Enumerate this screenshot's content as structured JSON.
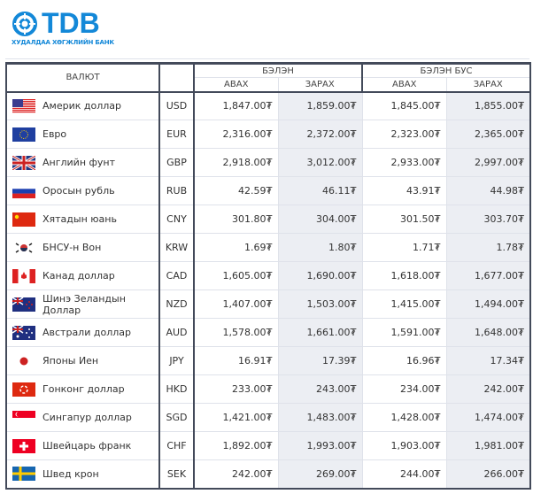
{
  "logo": {
    "name": "TDB",
    "subtitle": "ХУДАЛДАА ХӨГЖЛИЙН БАНК",
    "color": "#1388d8"
  },
  "header": {
    "currency": "ВАЛЮТ",
    "cash": "БЭЛЭН",
    "noncash": "БЭЛЭН БУС",
    "buy": "АВАХ",
    "sell": "ЗАРАХ"
  },
  "rows": [
    {
      "flag": "us-flag",
      "name": "Америк доллар",
      "code": "USD",
      "cash_buy": "1,847.00₮",
      "cash_sell": "1,859.00₮",
      "noncash_buy": "1,845.00₮",
      "noncash_sell": "1,855.00₮"
    },
    {
      "flag": "eu-flag",
      "name": "Евро",
      "code": "EUR",
      "cash_buy": "2,316.00₮",
      "cash_sell": "2,372.00₮",
      "noncash_buy": "2,323.00₮",
      "noncash_sell": "2,365.00₮"
    },
    {
      "flag": "gb-flag",
      "name": "Английн фунт",
      "code": "GBP",
      "cash_buy": "2,918.00₮",
      "cash_sell": "3,012.00₮",
      "noncash_buy": "2,933.00₮",
      "noncash_sell": "2,997.00₮"
    },
    {
      "flag": "ru-flag",
      "name": "Оросын рубль",
      "code": "RUB",
      "cash_buy": "42.59₮",
      "cash_sell": "46.11₮",
      "noncash_buy": "43.91₮",
      "noncash_sell": "44.98₮"
    },
    {
      "flag": "cn-flag",
      "name": "Хятадын юань",
      "code": "CNY",
      "cash_buy": "301.80₮",
      "cash_sell": "304.00₮",
      "noncash_buy": "301.50₮",
      "noncash_sell": "303.70₮"
    },
    {
      "flag": "kr-flag",
      "name": "БНСУ-н Вон",
      "code": "KRW",
      "cash_buy": "1.69₮",
      "cash_sell": "1.80₮",
      "noncash_buy": "1.71₮",
      "noncash_sell": "1.78₮"
    },
    {
      "flag": "ca-flag",
      "name": "Канад доллар",
      "code": "CAD",
      "cash_buy": "1,605.00₮",
      "cash_sell": "1,690.00₮",
      "noncash_buy": "1,618.00₮",
      "noncash_sell": "1,677.00₮"
    },
    {
      "flag": "nz-flag",
      "name": "Шинэ Зеландын Доллар",
      "code": "NZD",
      "cash_buy": "1,407.00₮",
      "cash_sell": "1,503.00₮",
      "noncash_buy": "1,415.00₮",
      "noncash_sell": "1,494.00₮"
    },
    {
      "flag": "au-flag",
      "name": "Австрали доллар",
      "code": "AUD",
      "cash_buy": "1,578.00₮",
      "cash_sell": "1,661.00₮",
      "noncash_buy": "1,591.00₮",
      "noncash_sell": "1,648.00₮"
    },
    {
      "flag": "jp-flag",
      "name": "Японы Иен",
      "code": "JPY",
      "cash_buy": "16.91₮",
      "cash_sell": "17.39₮",
      "noncash_buy": "16.96₮",
      "noncash_sell": "17.34₮"
    },
    {
      "flag": "hk-flag",
      "name": "Гонконг доллар",
      "code": "HKD",
      "cash_buy": "233.00₮",
      "cash_sell": "243.00₮",
      "noncash_buy": "234.00₮",
      "noncash_sell": "242.00₮"
    },
    {
      "flag": "sg-flag",
      "name": "Сингапур доллар",
      "code": "SGD",
      "cash_buy": "1,421.00₮",
      "cash_sell": "1,483.00₮",
      "noncash_buy": "1,428.00₮",
      "noncash_sell": "1,474.00₮"
    },
    {
      "flag": "ch-flag",
      "name": "Швейцарь франк",
      "code": "CHF",
      "cash_buy": "1,892.00₮",
      "cash_sell": "1,993.00₮",
      "noncash_buy": "1,903.00₮",
      "noncash_sell": "1,981.00₮"
    },
    {
      "flag": "se-flag",
      "name": "Швед крон",
      "code": "SEK",
      "cash_buy": "242.00₮",
      "cash_sell": "269.00₮",
      "noncash_buy": "244.00₮",
      "noncash_sell": "266.00₮"
    }
  ]
}
